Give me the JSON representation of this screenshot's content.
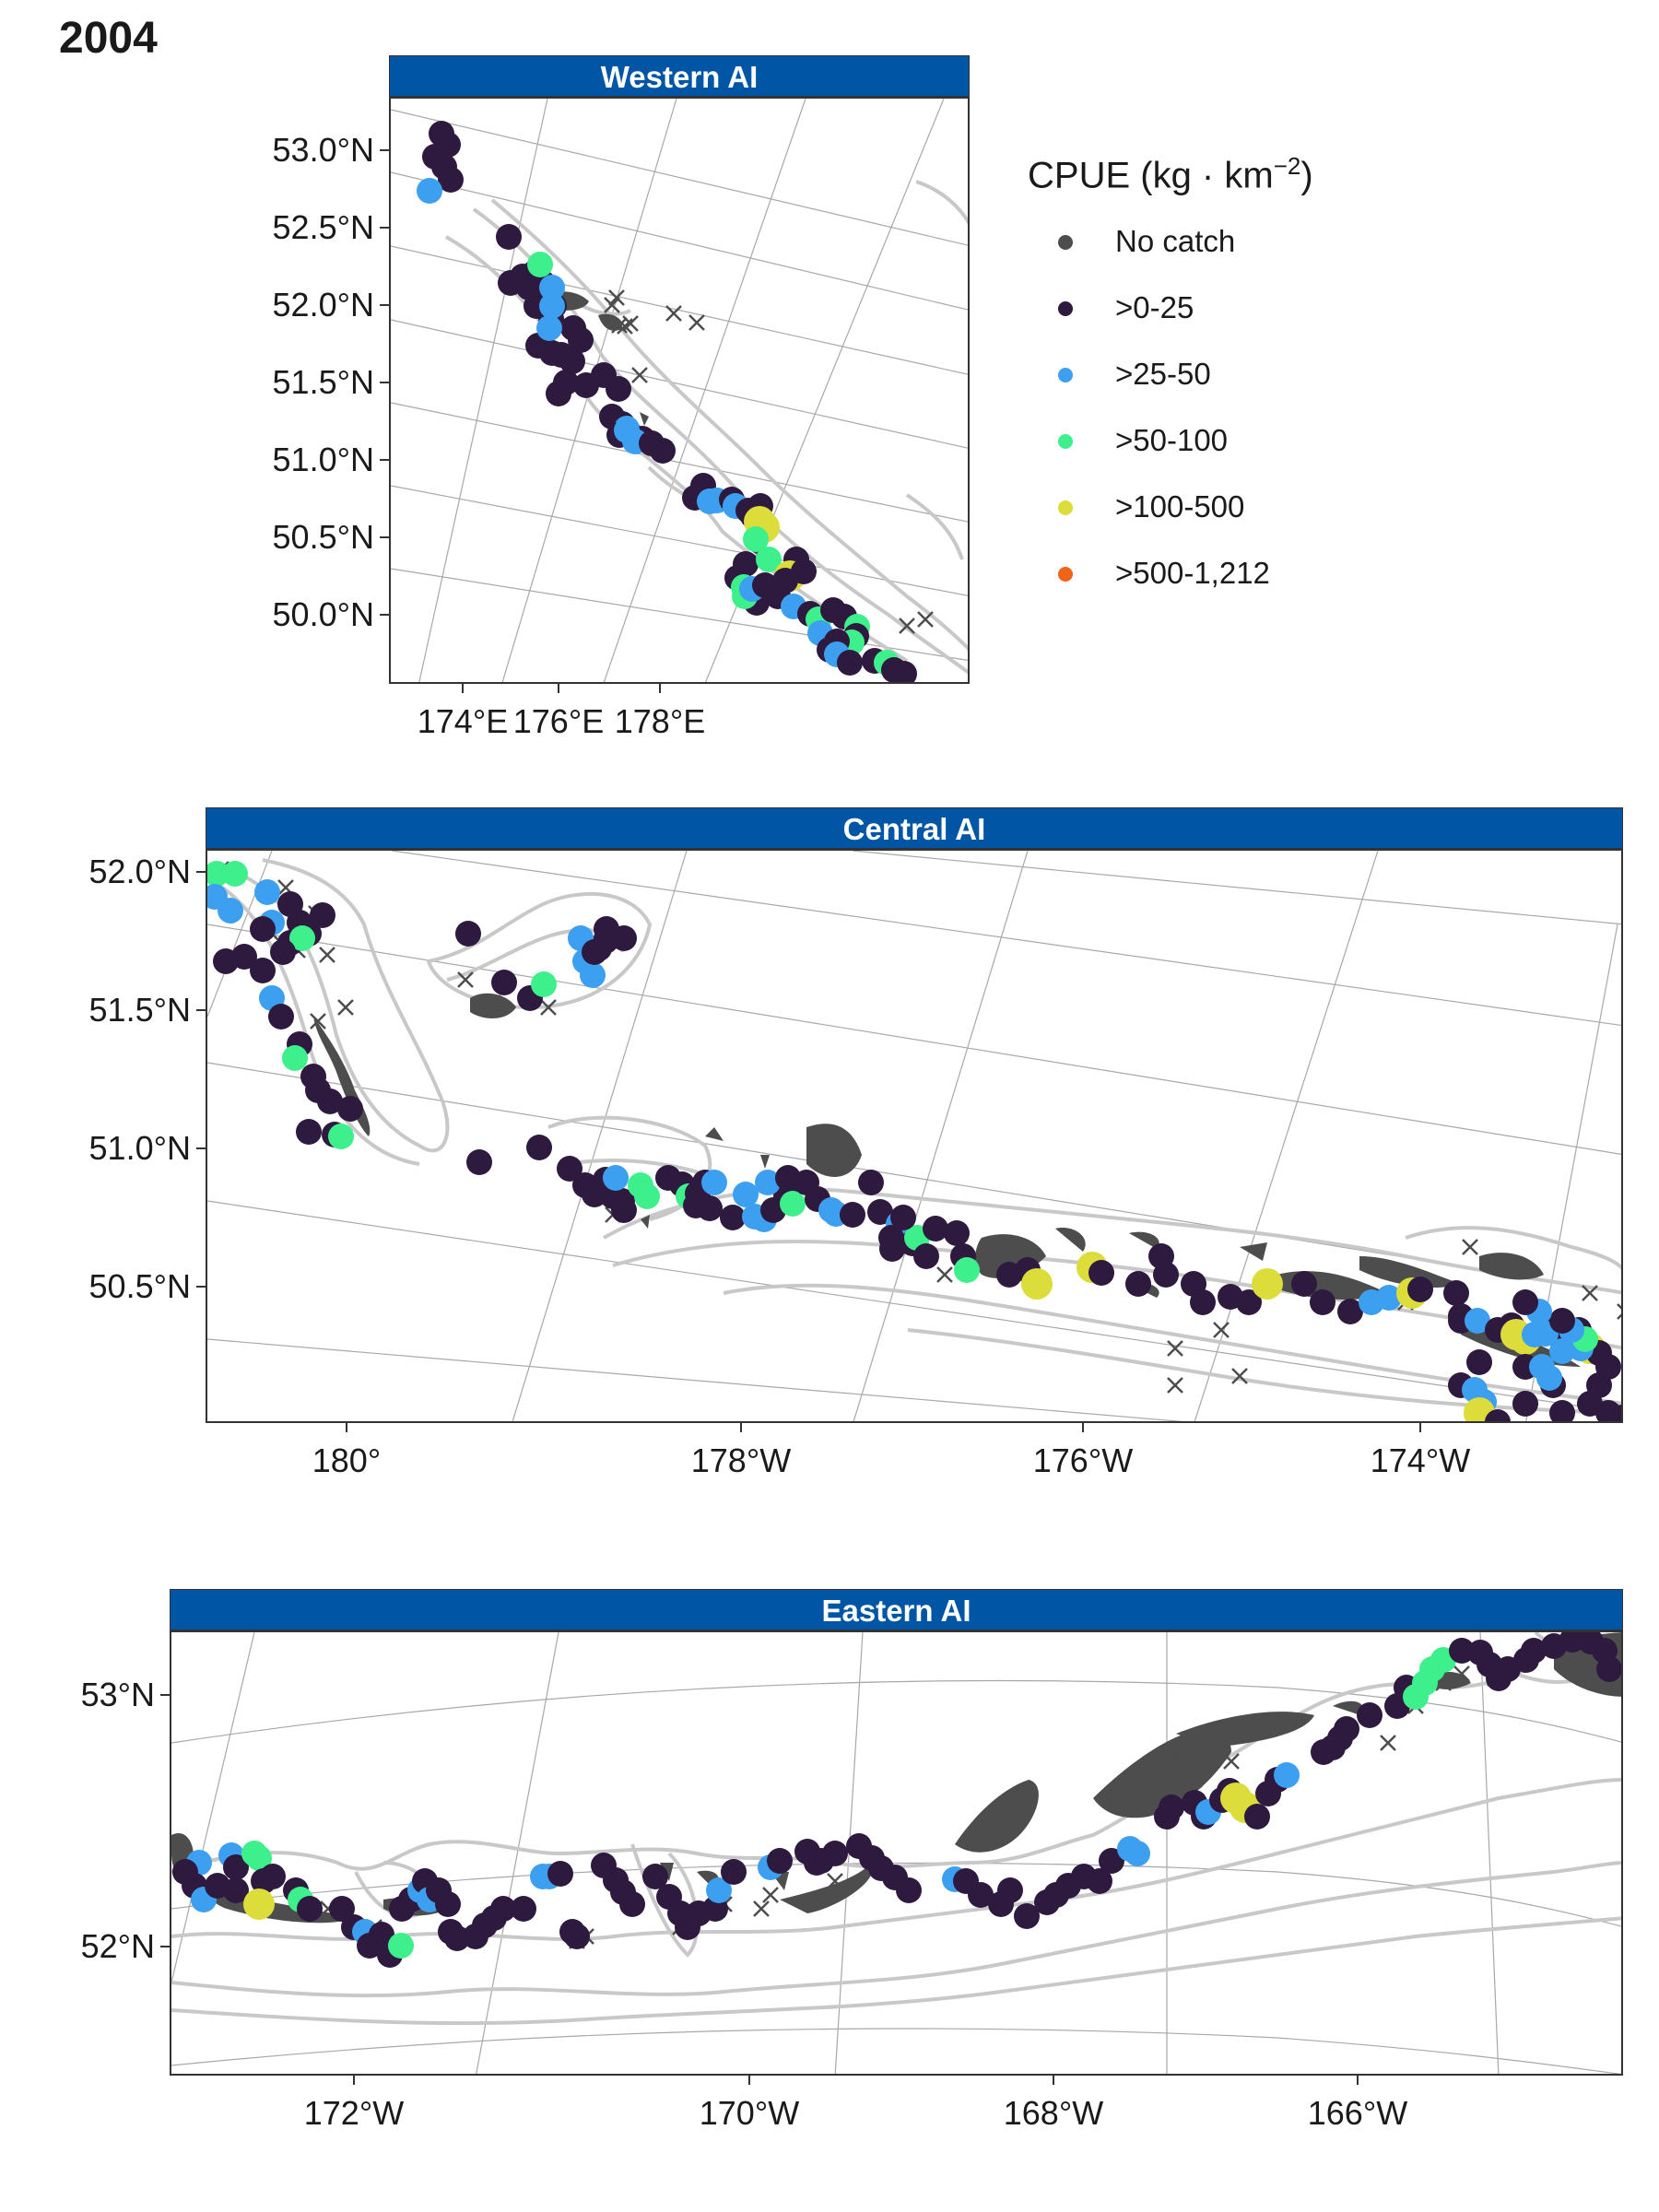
{
  "figure_title": "2004",
  "legend": {
    "title_main": "CPUE (kg",
    "title_dot": " · ",
    "title_unit": "km",
    "title_exp": "−2",
    "title_close": ")",
    "items": [
      {
        "label": "No catch",
        "color": "#4d4d4d"
      },
      {
        "label": ">0-25",
        "color": "#2d1a3e"
      },
      {
        "label": ">25-50",
        "color": "#3d9ff0"
      },
      {
        "label": ">50-100",
        "color": "#3ef08c"
      },
      {
        "label": ">100-500",
        "color": "#dcdc3a"
      },
      {
        "label": ">500-1,212",
        "color": "#f06418"
      }
    ]
  },
  "colors": {
    "strip": "#0055A4",
    "land": "#4d4d4d",
    "contour": "#c8c8c8",
    "graticule": "#a8a8a8"
  },
  "panels": {
    "western": {
      "title": "Western AI",
      "ylabels": [
        "53.0°N",
        "52.5°N",
        "52.0°N",
        "51.5°N",
        "51.0°N",
        "50.5°N",
        "50.0°N"
      ],
      "xlabels": [
        "174°E",
        "176°E",
        "178°E"
      ]
    },
    "central": {
      "title": "Central AI",
      "ylabels": [
        "52.0°N",
        "51.5°N",
        "51.0°N",
        "50.5°N"
      ],
      "xlabels": [
        "180°",
        "178°W",
        "176°W",
        "174°W"
      ]
    },
    "eastern": {
      "title": "Eastern AI",
      "ylabels": [
        "53°N",
        "52°N"
      ],
      "xlabels": [
        "172°W",
        "170°W",
        "168°W",
        "166°W"
      ]
    }
  }
}
